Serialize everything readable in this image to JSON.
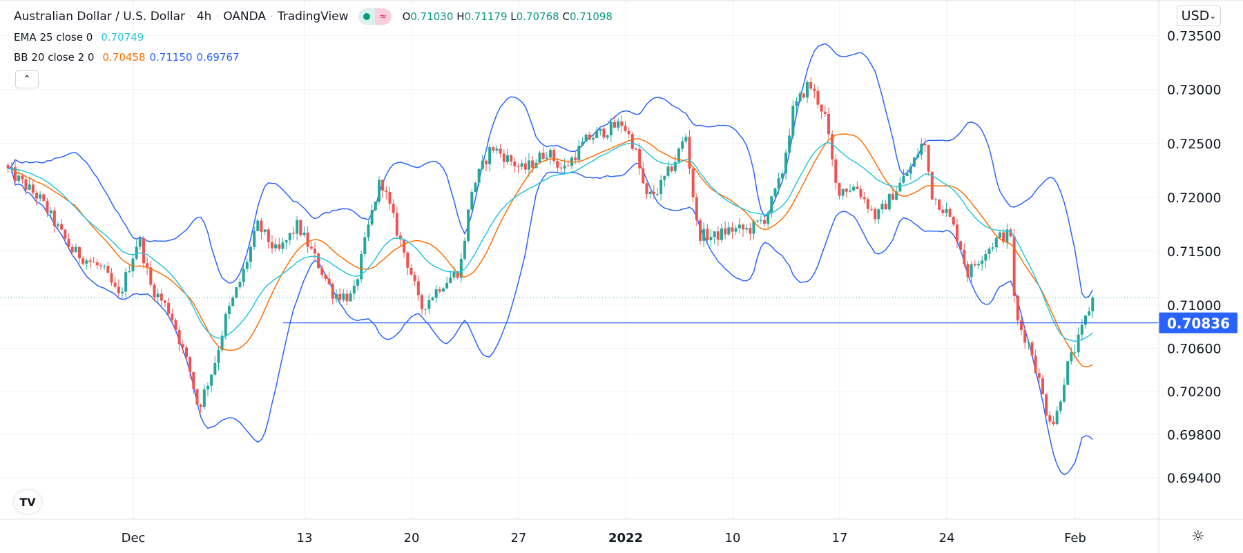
{
  "header": {
    "title": "Australian Dollar / U.S. Dollar",
    "interval": "4h",
    "exchange": "OANDA",
    "source": "TradingView",
    "separator": "·",
    "ohlc": {
      "o_label": "O",
      "o": "0.71030",
      "h_label": "H",
      "h": "0.71179",
      "l_label": "L",
      "l": "0.70768",
      "c_label": "C",
      "c": "0.71098"
    },
    "status_icons": [
      "market-open-dot-icon",
      "delayed-data-icon"
    ],
    "delayed_glyph": "≈"
  },
  "indicators": {
    "ema": {
      "label": "EMA 25 close 0",
      "value": "0.70749"
    },
    "bb": {
      "label": "BB 20 close 2 0",
      "basis": "0.70458",
      "upper": "0.71150",
      "lower": "0.69767"
    }
  },
  "controls": {
    "collapse_glyph": "⌃",
    "currency": "USD",
    "currency_caret": "⌄",
    "settings_glyph": "☼",
    "logo_text": "TV"
  },
  "colors": {
    "up": "#26a69a",
    "down": "#ef5350",
    "ema": "#26c6da",
    "bb_basis": "#ff6d00",
    "bb_band": "#2962ff",
    "hline": "#2962ff",
    "price_label_bg": "#2962ff"
  },
  "price_axis": {
    "ticks": [
      "0.73500",
      "0.73000",
      "0.72500",
      "0.72000",
      "0.71500",
      "0.71000",
      "0.70600",
      "0.70200",
      "0.69800",
      "0.69400"
    ]
  },
  "horizontal_line": {
    "price": 0.70836,
    "label": "0.70836"
  },
  "chart_data": {
    "type": "candlestick",
    "title": "Australian Dollar / U.S. Dollar · 4h · OANDA",
    "x_unit": "trading days from Dec 1",
    "x_ticks": [
      {
        "t": 0,
        "label": "Dec"
      },
      {
        "t": 8,
        "label": "13"
      },
      {
        "t": 13,
        "label": "20"
      },
      {
        "t": 18,
        "label": "27"
      },
      {
        "t": 23,
        "label": "2022",
        "bold": true
      },
      {
        "t": 28,
        "label": "10"
      },
      {
        "t": 33,
        "label": "17"
      },
      {
        "t": 38,
        "label": "24"
      },
      {
        "t": 44,
        "label": "Feb"
      }
    ],
    "ylim": [
      0.6925,
      0.7375
    ],
    "close_path": [
      [
        -5.85,
        0.7225
      ],
      [
        -4.37,
        0.7199
      ],
      [
        -2.89,
        0.7151
      ],
      [
        -1.41,
        0.7133
      ],
      [
        -0.67,
        0.7107
      ],
      [
        0.26,
        0.7163
      ],
      [
        0.81,
        0.7118
      ],
      [
        1.74,
        0.7093
      ],
      [
        2.67,
        0.7037
      ],
      [
        3.04,
        0.7004
      ],
      [
        3.78,
        0.7045
      ],
      [
        4.33,
        0.7089
      ],
      [
        5.07,
        0.7126
      ],
      [
        5.81,
        0.7174
      ],
      [
        6.74,
        0.7148
      ],
      [
        7.67,
        0.7174
      ],
      [
        8.59,
        0.714
      ],
      [
        9.33,
        0.7111
      ],
      [
        10.26,
        0.7107
      ],
      [
        11.0,
        0.7174
      ],
      [
        11.56,
        0.7218
      ],
      [
        12.3,
        0.717
      ],
      [
        13.04,
        0.7126
      ],
      [
        13.41,
        0.7096
      ],
      [
        14.33,
        0.7118
      ],
      [
        15.26,
        0.7133
      ],
      [
        15.81,
        0.7207
      ],
      [
        16.74,
        0.7247
      ],
      [
        18.22,
        0.7225
      ],
      [
        19.33,
        0.7243
      ],
      [
        20.07,
        0.7225
      ],
      [
        21.19,
        0.7254
      ],
      [
        22.85,
        0.7269
      ],
      [
        23.41,
        0.7247
      ],
      [
        23.96,
        0.7199
      ],
      [
        24.52,
        0.7207
      ],
      [
        25.26,
        0.7232
      ],
      [
        25.81,
        0.7258
      ],
      [
        26.37,
        0.7166
      ],
      [
        27.11,
        0.7163
      ],
      [
        27.85,
        0.717
      ],
      [
        28.78,
        0.717
      ],
      [
        29.52,
        0.7181
      ],
      [
        30.26,
        0.7218
      ],
      [
        30.81,
        0.728
      ],
      [
        31.56,
        0.7306
      ],
      [
        32.3,
        0.7277
      ],
      [
        32.85,
        0.7207
      ],
      [
        33.78,
        0.721
      ],
      [
        34.7,
        0.7181
      ],
      [
        35.63,
        0.7207
      ],
      [
        36.37,
        0.7229
      ],
      [
        36.93,
        0.7254
      ],
      [
        37.3,
        0.7203
      ],
      [
        38.04,
        0.7185
      ],
      [
        38.59,
        0.7159
      ],
      [
        38.96,
        0.7129
      ],
      [
        39.7,
        0.7148
      ],
      [
        40.44,
        0.7163
      ],
      [
        41.0,
        0.7166
      ],
      [
        41.19,
        0.7089
      ],
      [
        41.93,
        0.706
      ],
      [
        42.67,
        0.7001
      ],
      [
        43.04,
        0.699
      ],
      [
        43.59,
        0.7041
      ],
      [
        44.15,
        0.7067
      ],
      [
        44.7,
        0.71
      ],
      [
        44.89,
        0.71098
      ]
    ],
    "last_bar": {
      "open": 0.7103,
      "high": 0.71179,
      "low": 0.70768,
      "close": 0.71098
    },
    "series": [
      {
        "name": "EMA 25 close",
        "period": 25
      },
      {
        "name": "BB basis",
        "period": 20
      },
      {
        "name": "BB upper",
        "period": 20,
        "stddev": 2
      },
      {
        "name": "BB lower",
        "period": 20,
        "stddev": 2
      }
    ]
  }
}
